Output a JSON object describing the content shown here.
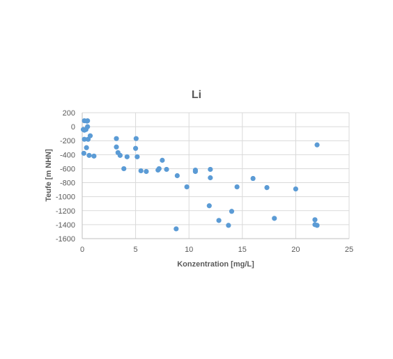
{
  "chart_data": {
    "type": "scatter",
    "title": "Li",
    "xlabel": "Konzentration [mg/L]",
    "ylabel": "Teufe [m NHN]",
    "xlim": [
      0,
      25
    ],
    "ylim": [
      -1600,
      200
    ],
    "xticks": [
      "0",
      "5",
      "10",
      "15",
      "20",
      "25"
    ],
    "yticks": [
      "200",
      "0",
      "-200",
      "-400",
      "-600",
      "-800",
      "-1000",
      "-1200",
      "-1400",
      "-1600"
    ],
    "xtick_values": [
      0,
      5,
      10,
      15,
      20,
      25
    ],
    "ytick_values": [
      200,
      0,
      -200,
      -400,
      -600,
      -800,
      -1000,
      -1200,
      -1400,
      -1600
    ],
    "grid": true,
    "marker_color": "#5b9bd5",
    "series": [
      {
        "points": [
          [
            0.2,
            85
          ],
          [
            0.5,
            85
          ],
          [
            0.45,
            80
          ],
          [
            0.1,
            -40
          ],
          [
            0.2,
            -50
          ],
          [
            0.35,
            -40
          ],
          [
            0.5,
            0
          ],
          [
            0.75,
            -130
          ],
          [
            0.2,
            -180
          ],
          [
            0.55,
            -180
          ],
          [
            0.4,
            -300
          ],
          [
            0.15,
            -380
          ],
          [
            0.65,
            -410
          ],
          [
            1.1,
            -420
          ],
          [
            3.2,
            -170
          ],
          [
            3.2,
            -290
          ],
          [
            3.35,
            -370
          ],
          [
            3.55,
            -410
          ],
          [
            3.9,
            -600
          ],
          [
            4.2,
            -430
          ],
          [
            5.05,
            -170
          ],
          [
            5.0,
            -310
          ],
          [
            5.15,
            -430
          ],
          [
            5.5,
            -630
          ],
          [
            6.0,
            -640
          ],
          [
            7.1,
            -620
          ],
          [
            7.2,
            -600
          ],
          [
            7.5,
            -480
          ],
          [
            7.9,
            -610
          ],
          [
            8.8,
            -1460
          ],
          [
            8.9,
            -700
          ],
          [
            9.8,
            -860
          ],
          [
            10.6,
            -640
          ],
          [
            10.6,
            -620
          ],
          [
            11.9,
            -1130
          ],
          [
            12.0,
            -730
          ],
          [
            12.0,
            -610
          ],
          [
            12.8,
            -1340
          ],
          [
            13.7,
            -1410
          ],
          [
            14.0,
            -1210
          ],
          [
            14.5,
            -860
          ],
          [
            16.0,
            -740
          ],
          [
            17.3,
            -870
          ],
          [
            18.0,
            -1310
          ],
          [
            20.0,
            -890
          ],
          [
            21.8,
            -1330
          ],
          [
            21.8,
            -1400
          ],
          [
            22.0,
            -1410
          ],
          [
            22.0,
            -260
          ]
        ]
      }
    ]
  }
}
